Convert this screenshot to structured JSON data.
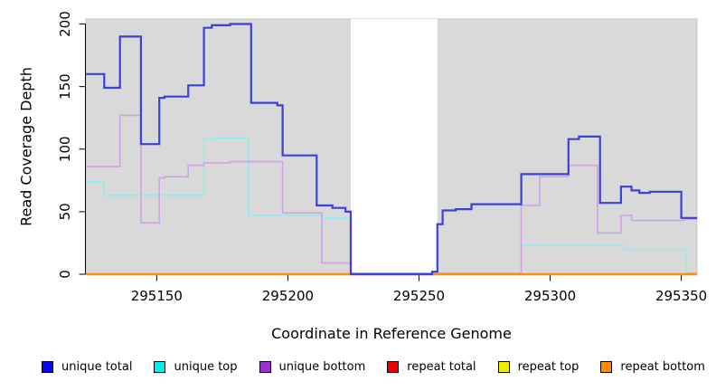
{
  "chart_data": {
    "type": "line",
    "subtype": "step",
    "title": "",
    "xlabel": "Coordinate in Reference Genome",
    "ylabel": "Read Coverage Depth",
    "xlim": [
      295123,
      295356
    ],
    "ylim": [
      0,
      204
    ],
    "x_ticks": [
      295150,
      295200,
      295250,
      295300,
      295350
    ],
    "y_ticks": [
      0,
      50,
      100,
      150,
      200
    ],
    "grid": false,
    "legend_position": "bottom",
    "panel_bg": "#d9d9d9",
    "panel_border": "#c6c6c6",
    "masked_region": {
      "x0": 295224,
      "x1": 295257,
      "color": "#ffffff"
    },
    "zero_overlap_color": "#9cd79b",
    "series": [
      {
        "name": "repeat total",
        "swatch": "#ee0000",
        "line_color": "#ee2222",
        "width": 1.5,
        "points": [
          [
            295123,
            0
          ]
        ]
      },
      {
        "name": "repeat top",
        "swatch": "#eeee00",
        "line_color": "#eded4f",
        "width": 1.5,
        "points": [
          [
            295123,
            0
          ]
        ]
      },
      {
        "name": "unique top",
        "swatch": "#00eded",
        "line_color": "#8feded",
        "width": 1.6,
        "zero_overlap": true,
        "points": [
          [
            295123,
            74
          ],
          [
            295130,
            63
          ],
          [
            295168,
            108
          ],
          [
            295172,
            109
          ],
          [
            295185,
            47
          ],
          [
            295213,
            45
          ],
          [
            295224,
            0
          ],
          [
            295289,
            23
          ],
          [
            295328,
            20
          ],
          [
            295352,
            0
          ]
        ]
      },
      {
        "name": "unique bottom",
        "swatch": "#9a32cd",
        "line_color": "#cda3e2",
        "width": 1.6,
        "points": [
          [
            295123,
            86
          ],
          [
            295136,
            127
          ],
          [
            295144,
            41
          ],
          [
            295151,
            77
          ],
          [
            295153,
            78
          ],
          [
            295162,
            87
          ],
          [
            295168,
            89
          ],
          [
            295178,
            90
          ],
          [
            295198,
            49
          ],
          [
            295213,
            9
          ],
          [
            295224,
            0
          ],
          [
            295289,
            55
          ],
          [
            295296,
            78
          ],
          [
            295307,
            87
          ],
          [
            295318,
            33
          ],
          [
            295327,
            47
          ],
          [
            295331,
            43
          ],
          [
            295351,
            44
          ]
        ]
      },
      {
        "name": "repeat bottom",
        "swatch": "#ff8c00",
        "line_color": "#ff910a",
        "width": 2.4,
        "points": [
          [
            295123,
            0
          ]
        ]
      },
      {
        "name": "unique total",
        "swatch": "#0808ee",
        "line_color": "#3f3fd9",
        "width": 2.2,
        "points": [
          [
            295123,
            160
          ],
          [
            295130,
            149
          ],
          [
            295136,
            190
          ],
          [
            295144,
            104
          ],
          [
            295151,
            141
          ],
          [
            295153,
            142
          ],
          [
            295162,
            151
          ],
          [
            295168,
            197
          ],
          [
            295171,
            199
          ],
          [
            295178,
            200
          ],
          [
            295186,
            137
          ],
          [
            295196,
            135
          ],
          [
            295198,
            95
          ],
          [
            295211,
            55
          ],
          [
            295217,
            53
          ],
          [
            295222,
            50
          ],
          [
            295224,
            0
          ],
          [
            295255,
            2
          ],
          [
            295257,
            40
          ],
          [
            295259,
            51
          ],
          [
            295264,
            52
          ],
          [
            295270,
            56
          ],
          [
            295289,
            80
          ],
          [
            295307,
            108
          ],
          [
            295311,
            110
          ],
          [
            295319,
            57
          ],
          [
            295327,
            70
          ],
          [
            295331,
            67
          ],
          [
            295334,
            65
          ],
          [
            295338,
            66
          ],
          [
            295350,
            45
          ]
        ]
      }
    ],
    "legend_order": [
      "unique total",
      "unique top",
      "unique bottom",
      "repeat total",
      "repeat top",
      "repeat bottom"
    ]
  }
}
